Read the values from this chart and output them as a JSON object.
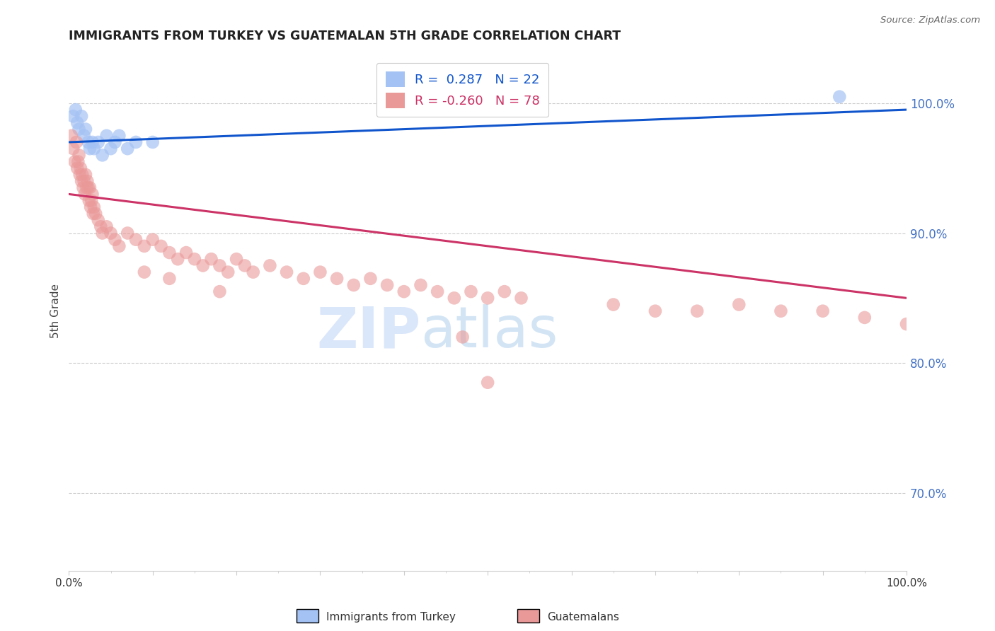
{
  "title": "IMMIGRANTS FROM TURKEY VS GUATEMALAN 5TH GRADE CORRELATION CHART",
  "source": "Source: ZipAtlas.com",
  "ylabel": "5th Grade",
  "xlim": [
    0.0,
    100.0
  ],
  "ylim": [
    64.0,
    104.0
  ],
  "yticks": [
    70.0,
    80.0,
    90.0,
    100.0
  ],
  "blue_R": 0.287,
  "blue_N": 22,
  "pink_R": -0.26,
  "pink_N": 78,
  "blue_color": "#a4c2f4",
  "pink_color": "#ea9999",
  "blue_line_color": "#1155cc",
  "pink_line_color": "#cc3366",
  "ytick_color": "#4472c4",
  "watermark_color": "#c9daf8",
  "legend_label_blue": "Immigrants from Turkey",
  "legend_label_pink": "Guatemalans",
  "blue_points_x": [
    0.5,
    0.8,
    1.0,
    1.2,
    1.5,
    1.8,
    2.0,
    2.3,
    2.5,
    2.8,
    3.0,
    3.5,
    4.0,
    4.5,
    5.0,
    5.5,
    6.0,
    7.0,
    8.0,
    10.0,
    50.0,
    92.0
  ],
  "blue_points_y": [
    99.0,
    99.5,
    98.5,
    98.0,
    99.0,
    97.5,
    98.0,
    97.0,
    96.5,
    97.0,
    96.5,
    97.0,
    96.0,
    97.5,
    96.5,
    97.0,
    97.5,
    96.5,
    97.0,
    97.0,
    100.0,
    100.5
  ],
  "pink_points_x": [
    0.3,
    0.5,
    0.7,
    0.9,
    1.0,
    1.1,
    1.2,
    1.3,
    1.4,
    1.5,
    1.6,
    1.7,
    1.8,
    1.9,
    2.0,
    2.1,
    2.2,
    2.3,
    2.4,
    2.5,
    2.6,
    2.7,
    2.8,
    2.9,
    3.0,
    3.2,
    3.5,
    3.8,
    4.0,
    4.5,
    5.0,
    5.5,
    6.0,
    7.0,
    8.0,
    9.0,
    10.0,
    11.0,
    12.0,
    13.0,
    14.0,
    15.0,
    16.0,
    17.0,
    18.0,
    19.0,
    20.0,
    21.0,
    22.0,
    24.0,
    26.0,
    28.0,
    30.0,
    32.0,
    34.0,
    36.0,
    38.0,
    40.0,
    42.0,
    44.0,
    46.0,
    48.0,
    50.0,
    52.0,
    54.0,
    47.0,
    65.0,
    70.0,
    75.0,
    80.0,
    85.0,
    50.0,
    90.0,
    95.0,
    100.0,
    9.0,
    12.0,
    18.0
  ],
  "pink_points_y": [
    97.5,
    96.5,
    95.5,
    97.0,
    95.0,
    95.5,
    96.0,
    94.5,
    95.0,
    94.0,
    94.5,
    93.5,
    94.0,
    93.0,
    94.5,
    93.5,
    94.0,
    93.5,
    92.5,
    93.5,
    92.0,
    92.5,
    93.0,
    91.5,
    92.0,
    91.5,
    91.0,
    90.5,
    90.0,
    90.5,
    90.0,
    89.5,
    89.0,
    90.0,
    89.5,
    89.0,
    89.5,
    89.0,
    88.5,
    88.0,
    88.5,
    88.0,
    87.5,
    88.0,
    87.5,
    87.0,
    88.0,
    87.5,
    87.0,
    87.5,
    87.0,
    86.5,
    87.0,
    86.5,
    86.0,
    86.5,
    86.0,
    85.5,
    86.0,
    85.5,
    85.0,
    85.5,
    85.0,
    85.5,
    85.0,
    82.0,
    84.5,
    84.0,
    84.0,
    84.5,
    84.0,
    78.5,
    84.0,
    83.5,
    83.0,
    87.0,
    86.5,
    85.5
  ]
}
